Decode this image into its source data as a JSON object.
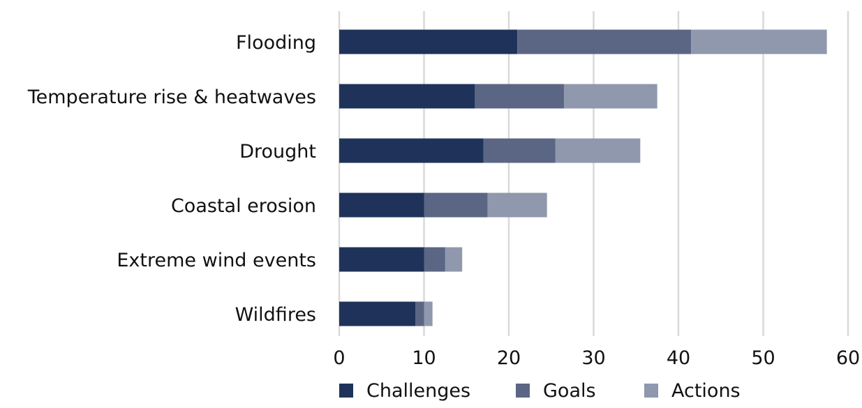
{
  "chart_data": {
    "type": "bar",
    "orientation": "horizontal",
    "stacked": true,
    "categories": [
      "Flooding",
      "Temperature rise & heatwaves",
      "Drought",
      "Coastal erosion",
      "Extreme wind events",
      "Wildfires"
    ],
    "series": [
      {
        "name": "Challenges",
        "color": "#1f3259",
        "values": [
          21,
          16,
          17,
          10,
          10,
          9
        ]
      },
      {
        "name": "Goals",
        "color": "#5b6685",
        "values": [
          20.5,
          10.5,
          8.5,
          7.5,
          2.5,
          1
        ]
      },
      {
        "name": "Actions",
        "color": "#8f98ad",
        "values": [
          16,
          11,
          10,
          7,
          2,
          1
        ]
      }
    ],
    "xlim": [
      0,
      60
    ],
    "xticks": [
      0,
      10,
      20,
      30,
      40,
      50,
      60
    ],
    "grid": true,
    "legend_position": "bottom",
    "title": "",
    "xlabel": "",
    "ylabel": ""
  }
}
